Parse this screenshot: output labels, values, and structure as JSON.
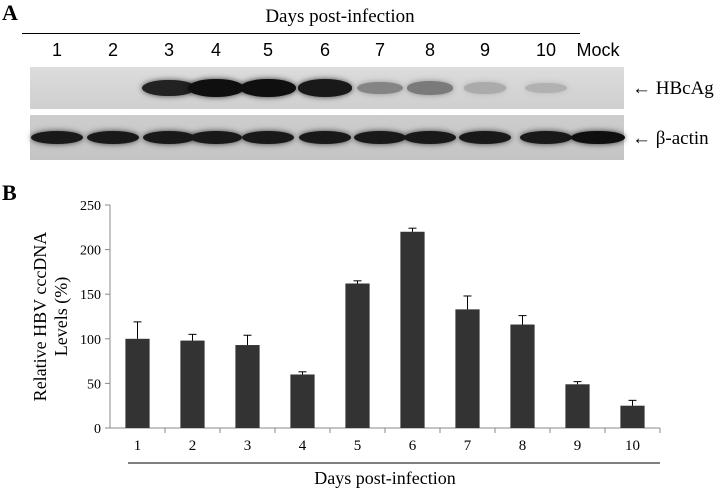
{
  "panel_a": {
    "letter": "A",
    "title": "Days post-infection",
    "lanes": [
      "1",
      "2",
      "3",
      "4",
      "5",
      "6",
      "7",
      "8",
      "9",
      "10",
      "Mock"
    ],
    "hbcag_label": "HBcAg",
    "actin_label": "β-actin",
    "hbcag_band_intensity": [
      0,
      0,
      0.85,
      0.95,
      0.95,
      0.9,
      0.35,
      0.4,
      0.15,
      0.12,
      0
    ],
    "actin_band_intensity": [
      0.9,
      0.9,
      0.9,
      0.9,
      0.9,
      0.9,
      0.9,
      0.9,
      0.9,
      0.9,
      0.95
    ]
  },
  "panel_b": {
    "letter": "B"
  },
  "chart_data": {
    "type": "bar",
    "categories": [
      "1",
      "2",
      "3",
      "4",
      "5",
      "6",
      "7",
      "8",
      "9",
      "10"
    ],
    "values": [
      100,
      98,
      93,
      60,
      162,
      220,
      133,
      116,
      49,
      25
    ],
    "errors": [
      19,
      7,
      11,
      3,
      3,
      4,
      15,
      10,
      3,
      6
    ],
    "xlabel": "Days post-infection",
    "ylabel": "Relative HBV cccDNA Levels (%)",
    "ylim": [
      0,
      250
    ],
    "yticks": [
      0,
      50,
      100,
      150,
      200,
      250
    ],
    "bar_color": "#333333",
    "grid": false
  }
}
